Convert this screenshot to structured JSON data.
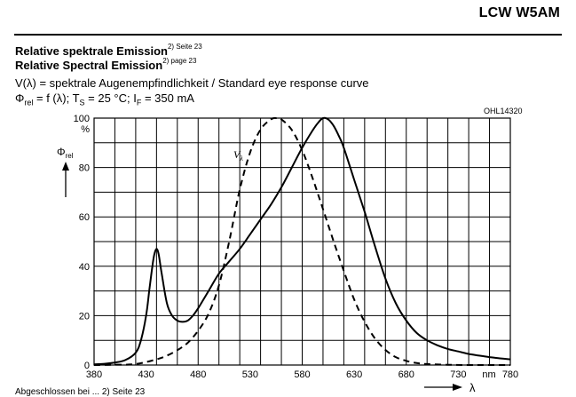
{
  "header": {
    "product": "LCW W5AM"
  },
  "titles": {
    "line1": "Relative spektrale Emission",
    "line1_ref": "2) Seite 23",
    "line2": "Relative Spectral Emission",
    "line2_ref": "2) page 23",
    "line3": "V(λ) = spektrale Augenempfindlichkeit / Standard eye response curve",
    "line4_phi": "Φ",
    "line4_sub": "rel",
    "line4_rest": " = f (λ); T",
    "line4_s": "S",
    "line4_rest2": " = 25 °C; I",
    "line4_f": "F",
    "line4_rest3": " = 350 mA"
  },
  "figure_code": "OHL14320",
  "footnote": "Abgeschlossen bei ... 2) Seite 23",
  "chart_data": {
    "type": "line",
    "xlim": [
      380,
      780
    ],
    "ylim": [
      0,
      100
    ],
    "x_ticks": [
      "380",
      "430",
      "480",
      "530",
      "580",
      "630",
      "680",
      "730",
      "780"
    ],
    "x_tick_values": [
      380,
      430,
      480,
      530,
      580,
      630,
      680,
      730,
      780
    ],
    "x_unit": "nm",
    "y_ticks": [
      "0",
      "20",
      "40",
      "60",
      "80",
      "100"
    ],
    "y_tick_values": [
      0,
      20,
      40,
      60,
      80,
      100
    ],
    "y_unit": "%",
    "ylabel": "Φrel",
    "xlabel": "λ",
    "grid": true,
    "series": [
      {
        "name": "",
        "style": "solid",
        "x": [
          380,
          390,
          400,
          410,
          420,
          425,
          430,
          433,
          436,
          438,
          440,
          442,
          445,
          450,
          455,
          460,
          465,
          470,
          475,
          480,
          490,
          500,
          510,
          520,
          530,
          540,
          550,
          560,
          570,
          580,
          590,
          595,
          600,
          605,
          610,
          615,
          620,
          630,
          640,
          650,
          660,
          670,
          680,
          690,
          700,
          710,
          720,
          730,
          740,
          750,
          760,
          770,
          780
        ],
        "y": [
          0.3,
          0.5,
          1,
          2,
          5,
          10,
          20,
          30,
          40,
          45,
          47,
          45,
          37,
          25,
          20,
          18,
          17.5,
          18,
          20,
          23,
          30,
          37,
          42,
          47,
          53,
          59,
          65,
          72,
          80,
          88,
          95,
          98,
          100,
          99.5,
          97,
          93,
          88,
          75,
          62,
          48,
          35,
          25,
          18,
          13,
          10,
          8,
          6.5,
          5.5,
          4.5,
          3.8,
          3.2,
          2.7,
          2.3
        ]
      },
      {
        "name": "Vλ",
        "style": "dashed",
        "x": [
          380,
          400,
          420,
          440,
          450,
          460,
          470,
          480,
          490,
          500,
          510,
          520,
          530,
          540,
          550,
          555,
          560,
          570,
          580,
          590,
          600,
          610,
          620,
          630,
          640,
          650,
          660,
          670,
          680,
          690,
          700,
          720,
          740,
          780
        ],
        "y": [
          0,
          0.1,
          0.4,
          2.3,
          3.8,
          6,
          9,
          13.9,
          20.8,
          32.3,
          50.3,
          71,
          86.2,
          95.4,
          99.5,
          100,
          99.5,
          95.2,
          87,
          75.7,
          63.1,
          50.3,
          38.1,
          26.5,
          17.5,
          10.7,
          6.1,
          3.2,
          1.7,
          0.8,
          0.4,
          0.1,
          0,
          0
        ]
      }
    ]
  }
}
